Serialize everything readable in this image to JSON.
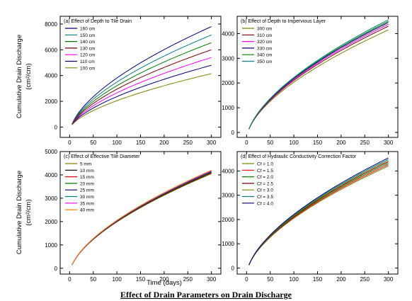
{
  "figure_title": "Effect of Drain Parameters on Drain Discharge",
  "shared_labels": {
    "ylabel_line1": "Cumulative Drain Discharge",
    "ylabel_line2": "(cm²/cm)",
    "xlabel": "Time (days)"
  },
  "chart_data": [
    {
      "type": "line",
      "title": "(a) Effect of Depth to Tile Drain",
      "xlim": [
        -20,
        320
      ],
      "ylim": [
        -800,
        8600
      ],
      "xticks": [
        0,
        50,
        100,
        150,
        200,
        250,
        300
      ],
      "yticks": [
        0,
        2000,
        4000,
        6000,
        8000
      ],
      "x": [
        5,
        300
      ],
      "curve_model": "power",
      "exponent": 0.6,
      "legend_position": "top-left",
      "series": [
        {
          "name": "160 cm",
          "color": "#000080",
          "values": [
            240,
            7800
          ]
        },
        {
          "name": "150 cm",
          "color": "#008080",
          "values": [
            230,
            7150
          ]
        },
        {
          "name": "140 cm",
          "color": "#008000",
          "values": [
            220,
            6550
          ]
        },
        {
          "name": "130 cm",
          "color": "#800000",
          "values": [
            210,
            6000
          ]
        },
        {
          "name": "120 cm",
          "color": "#ff00ff",
          "values": [
            200,
            5400
          ]
        },
        {
          "name": "110 cm",
          "color": "#000080",
          "values": [
            190,
            4800
          ]
        },
        {
          "name": "100 cm",
          "color": "#808000",
          "values": [
            170,
            4150
          ]
        }
      ]
    },
    {
      "type": "line",
      "title": "(b) Effect of Depth to Impervious Layer",
      "xlim": [
        -20,
        320
      ],
      "ylim": [
        -200,
        4700
      ],
      "xticks": [
        0,
        50,
        100,
        150,
        200,
        250,
        300
      ],
      "yticks": [
        0,
        1000,
        2000,
        3000,
        4000
      ],
      "x": [
        5,
        300
      ],
      "curve_model": "power",
      "exponent": 0.6,
      "legend_position": "top-left",
      "series": [
        {
          "name": "300 cm",
          "color": "#808000",
          "values": [
            140,
            4150
          ]
        },
        {
          "name": "310 cm",
          "color": "#800000",
          "values": [
            140,
            4300
          ]
        },
        {
          "name": "320 cm",
          "color": "#ff00ff",
          "values": [
            140,
            4380
          ]
        },
        {
          "name": "330 cm",
          "color": "#000080",
          "values": [
            140,
            4450
          ]
        },
        {
          "name": "340 cm",
          "color": "#008000",
          "values": [
            140,
            4500
          ]
        },
        {
          "name": "350 cm",
          "color": "#008080",
          "values": [
            140,
            4560
          ]
        }
      ]
    },
    {
      "type": "line",
      "title": "(c) Effect of Effective Tile Diameter",
      "xlim": [
        -20,
        320
      ],
      "ylim": [
        -250,
        5000
      ],
      "xticks": [
        0,
        50,
        100,
        150,
        200,
        250,
        300
      ],
      "yticks": [
        0,
        1000,
        2000,
        3000,
        4000,
        5000
      ],
      "x": [
        5,
        300
      ],
      "curve_model": "power",
      "exponent": 0.6,
      "legend_position": "top-left",
      "series": [
        {
          "name": "5 mm",
          "color": "#808000",
          "values": [
            140,
            4050
          ]
        },
        {
          "name": "10 mm",
          "color": "#000000",
          "values": [
            140,
            4080
          ]
        },
        {
          "name": "15 mm",
          "color": "#ff0000",
          "values": [
            140,
            4100
          ]
        },
        {
          "name": "20 mm",
          "color": "#008000",
          "values": [
            140,
            4120
          ]
        },
        {
          "name": "25 mm",
          "color": "#000080",
          "values": [
            140,
            4140
          ]
        },
        {
          "name": "30 mm",
          "color": "#008080",
          "values": [
            140,
            4160
          ]
        },
        {
          "name": "35 mm",
          "color": "#ff00ff",
          "values": [
            140,
            4180
          ]
        },
        {
          "name": "40 mm",
          "color": "#ff8000",
          "values": [
            140,
            4200
          ]
        }
      ]
    },
    {
      "type": "line",
      "title": "(d) Effect of Hydraulic Conductivity Correction Factor",
      "xlim": [
        -20,
        320
      ],
      "ylim": [
        -250,
        4800
      ],
      "xticks": [
        0,
        50,
        100,
        150,
        200,
        250,
        300
      ],
      "yticks": [
        0,
        1000,
        2000,
        3000,
        4000
      ],
      "x": [
        5,
        300
      ],
      "curve_model": "power",
      "exponent": 0.6,
      "legend_position": "top-left",
      "series": [
        {
          "name": "Cf = 1.0",
          "color": "#808000",
          "values": [
            130,
            4200
          ]
        },
        {
          "name": "Cf = 1.5",
          "color": "#ff0000",
          "values": [
            130,
            4260
          ]
        },
        {
          "name": "Cf = 2.0",
          "color": "#008000",
          "values": [
            130,
            4320
          ]
        },
        {
          "name": "Cf = 2.5",
          "color": "#800000",
          "values": [
            130,
            4380
          ]
        },
        {
          "name": "Cf = 3.0",
          "color": "#808000",
          "values": [
            130,
            4430
          ]
        },
        {
          "name": "Cf = 3.5",
          "color": "#008080",
          "values": [
            130,
            4480
          ]
        },
        {
          "name": "Cf = 4.0",
          "color": "#000080",
          "values": [
            130,
            4540
          ]
        }
      ]
    }
  ]
}
